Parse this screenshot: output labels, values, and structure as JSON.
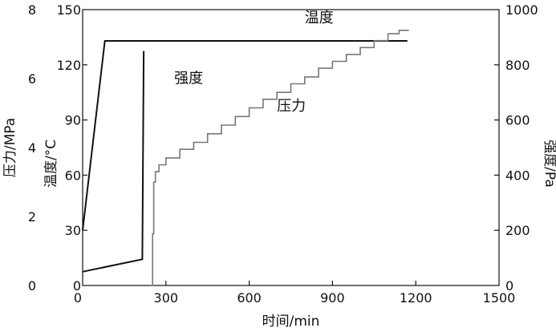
{
  "chart_data": {
    "type": "line",
    "title": "",
    "xlabel": "时间/min",
    "xlim": [
      0,
      1500
    ],
    "x_ticks": [
      "0",
      "300",
      "600",
      "900",
      "1200",
      "1500"
    ],
    "axes": {
      "pressure": {
        "label": "压力/MPa",
        "lim": [
          0,
          8
        ],
        "ticks": [
          "0",
          "2",
          "4",
          "6",
          "8"
        ],
        "side": "left-outer"
      },
      "temperature": {
        "label": "温度/°C",
        "lim": [
          0,
          150
        ],
        "ticks": [
          "0",
          "30",
          "60",
          "90",
          "120",
          "150"
        ],
        "side": "left-inner"
      },
      "strength": {
        "label": "强度/Pa",
        "lim": [
          0,
          1000
        ],
        "ticks": [
          "0",
          "200",
          "400",
          "600",
          "800",
          "1000"
        ],
        "side": "right"
      }
    },
    "grid": false,
    "legend": "none",
    "series": [
      {
        "name": "温度",
        "axis": "temperature",
        "color": "#111111",
        "points": [
          [
            0,
            30
          ],
          [
            80,
            133
          ],
          [
            1170,
            133
          ]
        ]
      },
      {
        "name": "强度",
        "axis": "strength",
        "color": "#111111",
        "points": [
          [
            0,
            50
          ],
          [
            215,
            95
          ],
          [
            220,
            850
          ]
        ]
      },
      {
        "name": "压力",
        "axis": "pressure",
        "color": "#777777",
        "step": true,
        "points": [
          [
            248,
            0
          ],
          [
            252,
            1.5
          ],
          [
            256,
            3.0
          ],
          [
            262,
            3.3
          ],
          [
            275,
            3.5
          ],
          [
            300,
            3.7
          ],
          [
            350,
            3.95
          ],
          [
            400,
            4.15
          ],
          [
            450,
            4.4
          ],
          [
            500,
            4.65
          ],
          [
            550,
            4.9
          ],
          [
            600,
            5.15
          ],
          [
            650,
            5.4
          ],
          [
            700,
            5.6
          ],
          [
            750,
            5.85
          ],
          [
            800,
            6.05
          ],
          [
            850,
            6.3
          ],
          [
            900,
            6.5
          ],
          [
            950,
            6.7
          ],
          [
            1000,
            6.9
          ],
          [
            1050,
            7.1
          ],
          [
            1100,
            7.3
          ],
          [
            1140,
            7.4
          ],
          [
            1175,
            7.4
          ]
        ]
      }
    ],
    "annotations": [
      {
        "text": "温度",
        "x": 800,
        "temperature": 143
      },
      {
        "text": "强度",
        "x": 330,
        "temperature": 110
      },
      {
        "text": "压力",
        "x": 700,
        "temperature": 95
      }
    ]
  }
}
